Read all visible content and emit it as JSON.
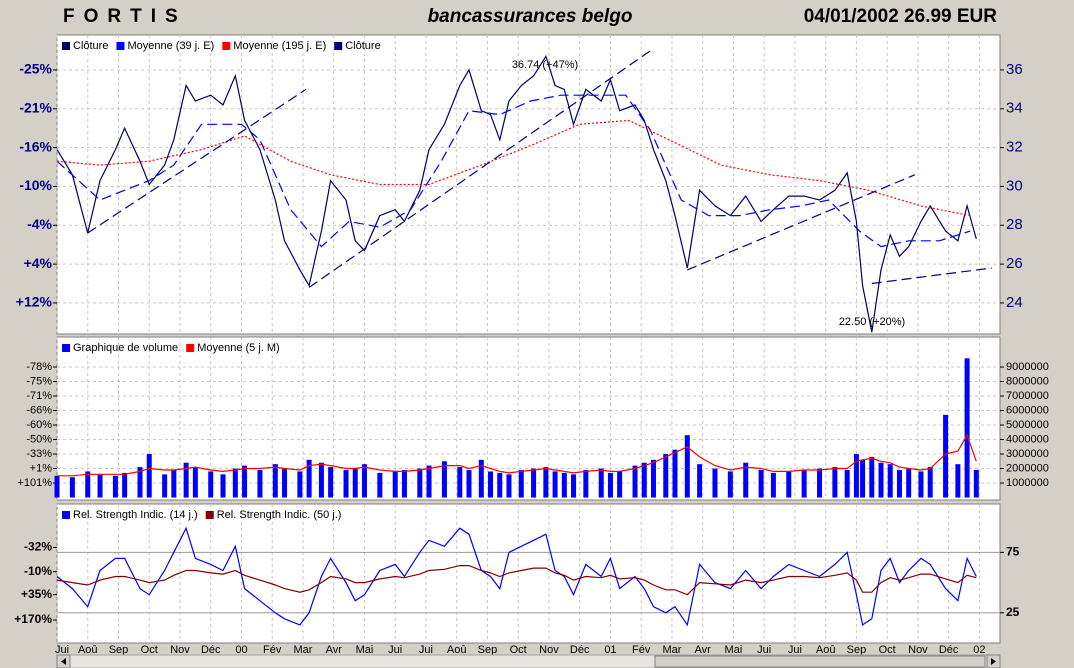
{
  "header": {
    "title": "FORTIS",
    "subtitle": "bancassurances belgo",
    "quote": "04/01/2002 26.99 EUR"
  },
  "chart_data": [
    {
      "type": "line",
      "grid": true,
      "x": [
        0.0,
        0.5,
        1.0,
        1.4,
        1.9,
        2.2,
        2.7,
        3.0,
        3.5,
        3.8,
        4.2,
        4.5,
        5.0,
        5.4,
        5.8,
        6.1,
        6.6,
        7.1,
        7.4,
        7.9,
        8.2,
        8.6,
        8.9,
        9.4,
        9.7,
        10.0,
        10.5,
        11.0,
        11.3,
        11.8,
        12.1,
        12.6,
        13.1,
        13.4,
        13.8,
        14.1,
        14.4,
        14.7,
        15.1,
        15.5,
        15.9,
        16.2,
        16.5,
        16.8,
        17.2,
        17.7,
        18.0,
        18.3,
        18.8,
        19.1,
        19.4,
        19.8,
        20.1,
        20.5,
        20.9,
        21.4,
        21.9,
        22.4,
        22.9,
        23.3,
        23.8,
        24.3,
        24.8,
        25.3,
        25.7,
        26.0,
        26.2,
        26.5,
        26.8,
        27.1,
        27.4,
        27.7,
        28.1,
        28.4,
        28.9,
        29.3,
        29.6,
        29.9
      ],
      "xlim": [
        0,
        30.67
      ],
      "xticks": [
        0,
        1,
        2,
        3,
        4,
        5,
        6,
        7,
        8,
        9,
        10,
        11,
        12,
        13,
        14,
        15,
        16,
        17,
        18,
        19,
        20,
        21,
        22,
        23,
        24,
        25,
        26,
        27,
        28,
        29,
        30
      ],
      "ylim": [
        22.4,
        37.8
      ],
      "yticks": [
        24,
        26,
        28,
        30,
        32,
        34,
        36
      ],
      "yticks_left": [
        {
          "value": 36,
          "label": "-25%"
        },
        {
          "value": 34,
          "label": "-21%"
        },
        {
          "value": 32,
          "label": "-16%"
        },
        {
          "value": 30,
          "label": "-10%"
        },
        {
          "value": 28,
          "label": "-4%"
        },
        {
          "value": 26,
          "label": "+4%"
        },
        {
          "value": 24,
          "label": "+12%"
        }
      ],
      "annotations": [
        "36.74 (+47%)",
        "22.50 (+20%)"
      ],
      "series": [
        {
          "name": "Clôture",
          "color": "#000066",
          "style": "solid",
          "values": [
            31.9,
            30.6,
            27.6,
            30.3,
            31.9,
            33.0,
            31.3,
            30.1,
            31.1,
            32.4,
            35.2,
            34.4,
            34.7,
            34.2,
            35.7,
            33.4,
            31.9,
            29.3,
            27.2,
            25.7,
            24.9,
            27.7,
            30.3,
            29.3,
            27.2,
            26.7,
            28.5,
            28.8,
            28.2,
            29.8,
            31.9,
            33.2,
            35.2,
            36.0,
            33.9,
            33.7,
            32.4,
            34.4,
            35.2,
            35.7,
            36.7,
            35.2,
            35.0,
            33.2,
            35.0,
            34.4,
            35.5,
            33.9,
            34.2,
            33.4,
            31.9,
            30.3,
            28.5,
            25.8,
            29.8,
            29.0,
            28.5,
            29.5,
            28.2,
            28.8,
            29.5,
            29.5,
            29.3,
            29.8,
            30.7,
            28.2,
            24.9,
            22.5,
            25.7,
            27.5,
            26.4,
            26.9,
            28.2,
            29.0,
            27.7,
            27.2,
            29.0,
            27.3
          ]
        },
        {
          "name": "Moyenne (39 j. E)",
          "color": "#0000ff",
          "style": "dashed",
          "x": [
            0,
            1.4,
            3.0,
            3.8,
            4.7,
            6.0,
            6.6,
            7.6,
            8.6,
            9.5,
            10.5,
            11.5,
            12.5,
            13.4,
            14.4,
            15.4,
            16.4,
            17.3,
            18.5,
            19.3,
            20.3,
            21.2,
            22.2,
            23.2,
            24.2,
            25.1,
            26.1,
            26.8,
            27.7,
            28.7,
            29.7
          ],
          "values": [
            31.3,
            29.3,
            30.3,
            31.1,
            33.2,
            33.2,
            32.4,
            28.8,
            26.9,
            28.2,
            27.9,
            28.8,
            31.3,
            33.9,
            33.7,
            34.4,
            34.7,
            34.7,
            34.7,
            32.9,
            29.3,
            28.5,
            28.5,
            28.8,
            29.0,
            29.3,
            27.7,
            26.9,
            27.2,
            27.2,
            27.7
          ]
        },
        {
          "name": "Moyenne (195 j. E)",
          "color": "#ff0000",
          "style": "dotted",
          "x": [
            0,
            1.4,
            3.0,
            4.7,
            6.1,
            7.6,
            8.9,
            10.5,
            12.1,
            13.8,
            15.4,
            17.0,
            18.6,
            19.9,
            21.6,
            23.2,
            24.8,
            26.4,
            28.1,
            29.7
          ],
          "values": [
            31.3,
            31.1,
            31.3,
            31.9,
            32.6,
            31.3,
            30.6,
            30.1,
            30.1,
            31.1,
            32.1,
            33.2,
            33.4,
            32.4,
            31.1,
            30.6,
            30.3,
            29.8,
            29.0,
            28.5
          ]
        },
        {
          "name": "Clôture",
          "color": "#000080",
          "style": "dashed",
          "x": [
            1.0,
            8.1,
            null,
            8.2,
            19.4,
            null,
            20.5,
            27.9,
            null,
            26.5,
            30.4
          ],
          "values": [
            27.6,
            35.0,
            null,
            24.8,
            37.1,
            null,
            25.7,
            30.6,
            null,
            25.0,
            25.8
          ]
        }
      ]
    },
    {
      "type": "bar",
      "grid": true,
      "x": [
        0.0,
        0.5,
        1.0,
        1.4,
        1.9,
        2.2,
        2.7,
        3.0,
        3.5,
        3.8,
        4.2,
        4.5,
        5.0,
        5.4,
        5.8,
        6.1,
        6.6,
        7.1,
        7.4,
        7.9,
        8.2,
        8.6,
        8.9,
        9.4,
        9.7,
        10.0,
        10.5,
        11.0,
        11.3,
        11.8,
        12.1,
        12.6,
        13.1,
        13.4,
        13.8,
        14.1,
        14.4,
        14.7,
        15.1,
        15.5,
        15.9,
        16.2,
        16.5,
        16.8,
        17.2,
        17.7,
        18.0,
        18.3,
        18.8,
        19.1,
        19.4,
        19.8,
        20.1,
        20.5,
        20.9,
        21.4,
        21.9,
        22.4,
        22.9,
        23.3,
        23.8,
        24.3,
        24.8,
        25.3,
        25.7,
        26.0,
        26.2,
        26.5,
        26.8,
        27.1,
        27.4,
        27.7,
        28.1,
        28.4,
        28.9,
        29.3,
        29.6,
        29.9
      ],
      "xlim": [
        0,
        30.67
      ],
      "xticks": [
        0,
        1,
        2,
        3,
        4,
        5,
        6,
        7,
        8,
        9,
        10,
        11,
        12,
        13,
        14,
        15,
        16,
        17,
        18,
        19,
        20,
        21,
        22,
        23,
        24,
        25,
        26,
        27,
        28,
        29,
        30
      ],
      "ylim": [
        -170000,
        11070000
      ],
      "yticks": [
        1000000,
        2000000,
        3000000,
        4000000,
        5000000,
        6000000,
        7000000,
        8000000,
        9000000
      ],
      "yticks_left": [
        {
          "value": 9000000,
          "label": "-78%"
        },
        {
          "value": 8000000,
          "label": "-75%"
        },
        {
          "value": 7000000,
          "label": "-71%"
        },
        {
          "value": 6000000,
          "label": "-66%"
        },
        {
          "value": 5000000,
          "label": "-60%"
        },
        {
          "value": 4000000,
          "label": "-50%"
        },
        {
          "value": 3000000,
          "label": "-33%"
        },
        {
          "value": 2000000,
          "label": "+1%"
        },
        {
          "value": 1000000,
          "label": "+101%"
        }
      ],
      "series": [
        {
          "name": "Graphique de volume",
          "color": "#0000ff",
          "values": [
            1500000,
            1400000,
            1800000,
            1600000,
            1500000,
            1700000,
            2100000,
            3000000,
            1600000,
            1900000,
            2400000,
            2100000,
            1800000,
            1600000,
            2000000,
            2200000,
            1900000,
            2300000,
            2000000,
            1800000,
            2600000,
            2400000,
            2100000,
            1900000,
            2000000,
            2300000,
            1700000,
            1800000,
            1900000,
            2000000,
            2200000,
            2500000,
            2100000,
            1900000,
            2600000,
            1800000,
            1700000,
            1600000,
            1900000,
            2000000,
            2100000,
            1800000,
            1700000,
            1600000,
            1900000,
            2000000,
            1700000,
            1800000,
            2200000,
            2400000,
            2600000,
            3000000,
            3300000,
            4300000,
            2300000,
            2000000,
            1800000,
            2400000,
            1900000,
            1700000,
            1800000,
            1900000,
            2000000,
            2100000,
            1900000,
            3000000,
            2600000,
            2800000,
            2400000,
            2300000,
            1900000,
            2000000,
            1800000,
            2100000,
            5700000,
            2300000,
            9600000,
            1900000
          ]
        },
        {
          "name": "Moyenne (5 j. M)",
          "color": "#ff0000",
          "type": "line",
          "style": "solid",
          "values": [
            1500000,
            1500000,
            1600000,
            1600000,
            1600000,
            1600000,
            1800000,
            2000000,
            1900000,
            1900000,
            2000000,
            2100000,
            1900000,
            1800000,
            1900000,
            2000000,
            2000000,
            2100000,
            2000000,
            1900000,
            2200000,
            2300000,
            2200000,
            2000000,
            2000000,
            2100000,
            1900000,
            1800000,
            1800000,
            1900000,
            2000000,
            2200000,
            2200000,
            2000000,
            2200000,
            2000000,
            1800000,
            1700000,
            1800000,
            1900000,
            2000000,
            1900000,
            1800000,
            1700000,
            1800000,
            1900000,
            1800000,
            1800000,
            2000000,
            2200000,
            2400000,
            2800000,
            3100000,
            3500000,
            2800000,
            2200000,
            1900000,
            2100000,
            2000000,
            1800000,
            1800000,
            1900000,
            1900000,
            2000000,
            2000000,
            2500000,
            2600000,
            2700000,
            2500000,
            2400000,
            2100000,
            2000000,
            1900000,
            2000000,
            3000000,
            3200000,
            4300000,
            2500000
          ]
        }
      ]
    },
    {
      "type": "line",
      "grid": false,
      "x": [
        0.0,
        0.5,
        1.0,
        1.4,
        1.9,
        2.2,
        2.7,
        3.0,
        3.5,
        3.8,
        4.2,
        4.5,
        5.0,
        5.4,
        5.8,
        6.1,
        6.6,
        7.1,
        7.4,
        7.9,
        8.2,
        8.6,
        8.9,
        9.4,
        9.7,
        10.0,
        10.5,
        11.0,
        11.3,
        11.8,
        12.1,
        12.6,
        13.1,
        13.4,
        13.8,
        14.1,
        14.4,
        14.7,
        15.1,
        15.5,
        15.9,
        16.2,
        16.5,
        16.8,
        17.2,
        17.7,
        18.0,
        18.3,
        18.8,
        19.1,
        19.4,
        19.8,
        20.1,
        20.5,
        20.9,
        21.4,
        21.9,
        22.4,
        22.9,
        23.3,
        23.8,
        24.3,
        24.8,
        25.3,
        25.7,
        26.0,
        26.2,
        26.5,
        26.8,
        27.1,
        27.4,
        27.7,
        28.1,
        28.4,
        28.9,
        29.3,
        29.6,
        29.9
      ],
      "xlim": [
        0,
        30.67
      ],
      "xticks": [
        {
          "value": 0,
          "label": "Jui"
        },
        {
          "value": 1,
          "label": "Aoû"
        },
        {
          "value": 2,
          "label": "Sep"
        },
        {
          "value": 3,
          "label": "Oct"
        },
        {
          "value": 4,
          "label": "Nov"
        },
        {
          "value": 5,
          "label": "Déc"
        },
        {
          "value": 6,
          "label": "00"
        },
        {
          "value": 7,
          "label": "Fév"
        },
        {
          "value": 8,
          "label": "Mar"
        },
        {
          "value": 9,
          "label": "Avr"
        },
        {
          "value": 10,
          "label": "Mai"
        },
        {
          "value": 11,
          "label": "Jui"
        },
        {
          "value": 12,
          "label": "Jui"
        },
        {
          "value": 13,
          "label": "Aoû"
        },
        {
          "value": 14,
          "label": "Sep"
        },
        {
          "value": 15,
          "label": "Oct"
        },
        {
          "value": 16,
          "label": "Nov"
        },
        {
          "value": 17,
          "label": "Déc"
        },
        {
          "value": 18,
          "label": "01"
        },
        {
          "value": 19,
          "label": "Fév"
        },
        {
          "value": 20,
          "label": "Mar"
        },
        {
          "value": 21,
          "label": "Avr"
        },
        {
          "value": 22,
          "label": "Mai"
        },
        {
          "value": 23,
          "label": "Jui"
        },
        {
          "value": 24,
          "label": "Jui"
        },
        {
          "value": 25,
          "label": "Aoû"
        },
        {
          "value": 26,
          "label": "Sep"
        },
        {
          "value": 27,
          "label": "Oct"
        },
        {
          "value": 28,
          "label": "Nov"
        },
        {
          "value": 29,
          "label": "Déc"
        },
        {
          "value": 30,
          "label": "02"
        }
      ],
      "ylim": [
        0,
        115
      ],
      "yticks": [
        25,
        75
      ],
      "yticks_left": [
        {
          "value": 79,
          "label": "-32%"
        },
        {
          "value": 59,
          "label": "-10%"
        },
        {
          "value": 40,
          "label": "+35%"
        },
        {
          "value": 19,
          "label": "+170%"
        }
      ],
      "series": [
        {
          "name": "Rel. Strength Indic. (14 j.)",
          "color": "#0000ff",
          "style": "solid",
          "values": [
            55,
            45,
            30,
            60,
            70,
            70,
            45,
            40,
            60,
            75,
            95,
            70,
            65,
            60,
            80,
            45,
            35,
            25,
            20,
            15,
            25,
            55,
            70,
            50,
            35,
            40,
            60,
            65,
            55,
            75,
            85,
            80,
            95,
            90,
            60,
            55,
            45,
            75,
            80,
            85,
            90,
            60,
            55,
            40,
            65,
            55,
            70,
            45,
            55,
            45,
            30,
            25,
            30,
            15,
            65,
            50,
            45,
            60,
            45,
            55,
            65,
            60,
            55,
            65,
            75,
            40,
            15,
            20,
            60,
            70,
            50,
            60,
            70,
            65,
            45,
            35,
            70,
            55
          ]
        },
        {
          "name": "Rel. Strength Indic. (50 j.)",
          "color": "#800000",
          "style": "solid",
          "values": [
            52,
            50,
            48,
            52,
            55,
            55,
            52,
            50,
            52,
            56,
            60,
            60,
            58,
            57,
            60,
            56,
            52,
            48,
            45,
            42,
            44,
            50,
            55,
            53,
            50,
            50,
            53,
            55,
            54,
            57,
            60,
            61,
            64,
            64,
            60,
            58,
            55,
            58,
            60,
            62,
            62,
            58,
            56,
            52,
            55,
            54,
            56,
            53,
            54,
            52,
            48,
            44,
            44,
            40,
            50,
            49,
            48,
            52,
            50,
            52,
            55,
            55,
            54,
            56,
            58,
            52,
            42,
            42,
            50,
            54,
            52,
            54,
            57,
            57,
            53,
            50,
            56,
            54
          ]
        }
      ]
    }
  ]
}
